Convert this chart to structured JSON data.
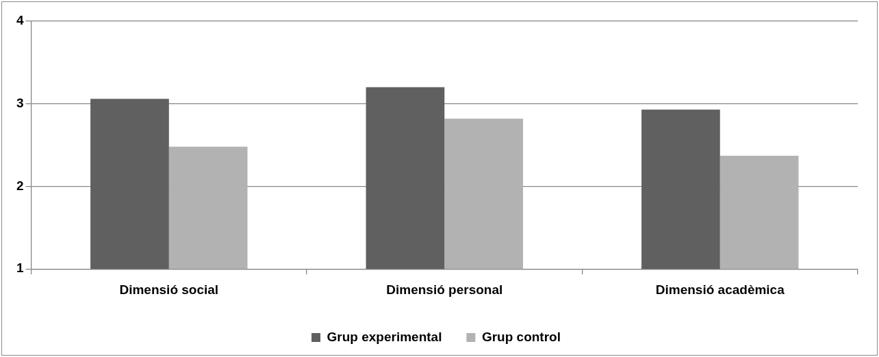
{
  "chart_data": {
    "type": "bar",
    "categories": [
      "Dimensió social",
      "Dimensió personal",
      "Dimensió acadèmica"
    ],
    "series": [
      {
        "name": "Grup experimental",
        "color": "#606060",
        "values": [
          3.06,
          3.2,
          2.93
        ]
      },
      {
        "name": "Grup control",
        "color": "#b2b2b2",
        "values": [
          2.48,
          2.82,
          2.37
        ]
      }
    ],
    "ylim": [
      1,
      4
    ],
    "yticks": [
      1,
      2,
      3,
      4
    ],
    "grid": "y",
    "legend": "bottom"
  }
}
